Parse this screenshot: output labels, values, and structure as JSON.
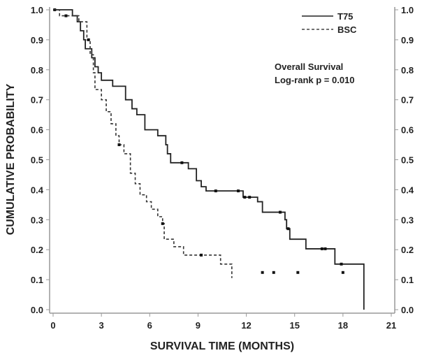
{
  "chart_data": {
    "type": "line",
    "subtype": "kaplan-meier",
    "title": "",
    "xlabel": "SURVIVAL TIME (MONTHS)",
    "ylabel": "CUMULATIVE PROBABILITY",
    "xlim": [
      0,
      21
    ],
    "ylim": [
      0,
      1
    ],
    "xticks": [
      "0",
      "3",
      "6",
      "9",
      "12",
      "15",
      "18",
      "21"
    ],
    "yticks": [
      "0.0",
      "0.1",
      "0.2",
      "0.3",
      "0.4",
      "0.5",
      "0.6",
      "0.7",
      "0.8",
      "0.9",
      "1.0"
    ],
    "grid": false,
    "legend_position": "top-right",
    "annotations": [
      "Overall Survival",
      "Log-rank  p = 0.010"
    ],
    "series": [
      {
        "name": "T75",
        "style": "solid",
        "color": "#222222",
        "end_time": 19.3,
        "steps": [
          [
            0,
            1
          ],
          [
            1.2,
            0.98
          ],
          [
            1.5,
            0.96
          ],
          [
            1.7,
            0.93
          ],
          [
            1.9,
            0.9
          ],
          [
            2.0,
            0.87
          ],
          [
            2.4,
            0.84
          ],
          [
            2.6,
            0.81
          ],
          [
            2.8,
            0.79
          ],
          [
            3.0,
            0.765
          ],
          [
            3.7,
            0.745
          ],
          [
            4.5,
            0.7
          ],
          [
            4.9,
            0.67
          ],
          [
            5.2,
            0.65
          ],
          [
            5.7,
            0.6
          ],
          [
            6.5,
            0.58
          ],
          [
            7.0,
            0.55
          ],
          [
            7.1,
            0.52
          ],
          [
            7.3,
            0.49
          ],
          [
            8.4,
            0.47
          ],
          [
            8.9,
            0.43
          ],
          [
            9.2,
            0.41
          ],
          [
            9.5,
            0.396
          ],
          [
            11.8,
            0.375
          ],
          [
            12.7,
            0.36
          ],
          [
            13.0,
            0.325
          ],
          [
            14.4,
            0.3
          ],
          [
            14.5,
            0.27
          ],
          [
            14.7,
            0.235
          ],
          [
            15.7,
            0.203
          ],
          [
            17.5,
            0.152
          ],
          [
            19.3,
            0.0
          ]
        ],
        "censored": [
          [
            0.1,
            1.0
          ],
          [
            8.0,
            0.49
          ],
          [
            10.1,
            0.396
          ],
          [
            11.5,
            0.396
          ],
          [
            11.9,
            0.375
          ],
          [
            12.2,
            0.375
          ],
          [
            14.1,
            0.325
          ],
          [
            14.6,
            0.27
          ],
          [
            16.7,
            0.203
          ],
          [
            16.9,
            0.203
          ],
          [
            17.9,
            0.152
          ]
        ]
      },
      {
        "name": "BSC",
        "style": "dashed",
        "color": "#333333",
        "end_time": 11.1,
        "steps": [
          [
            0,
            1
          ],
          [
            0.4,
            0.98
          ],
          [
            1.6,
            0.96
          ],
          [
            2.1,
            0.9
          ],
          [
            2.3,
            0.85
          ],
          [
            2.5,
            0.79
          ],
          [
            2.6,
            0.734
          ],
          [
            3.0,
            0.7
          ],
          [
            3.3,
            0.66
          ],
          [
            3.6,
            0.62
          ],
          [
            3.9,
            0.58
          ],
          [
            4.1,
            0.55
          ],
          [
            4.4,
            0.52
          ],
          [
            4.8,
            0.455
          ],
          [
            5.1,
            0.42
          ],
          [
            5.4,
            0.383
          ],
          [
            5.8,
            0.36
          ],
          [
            6.1,
            0.335
          ],
          [
            6.5,
            0.31
          ],
          [
            6.8,
            0.287
          ],
          [
            6.9,
            0.235
          ],
          [
            7.5,
            0.21
          ],
          [
            8.1,
            0.182
          ],
          [
            10.4,
            0.152
          ],
          [
            11.1,
            0.124
          ]
        ],
        "censored": [
          [
            0.8,
            0.98
          ],
          [
            2.2,
            0.9
          ],
          [
            4.1,
            0.55
          ],
          [
            6.8,
            0.287
          ],
          [
            9.2,
            0.182
          ],
          [
            13.0,
            0.124
          ],
          [
            13.7,
            0.124
          ],
          [
            15.2,
            0.124
          ],
          [
            18.0,
            0.124
          ]
        ]
      }
    ]
  }
}
